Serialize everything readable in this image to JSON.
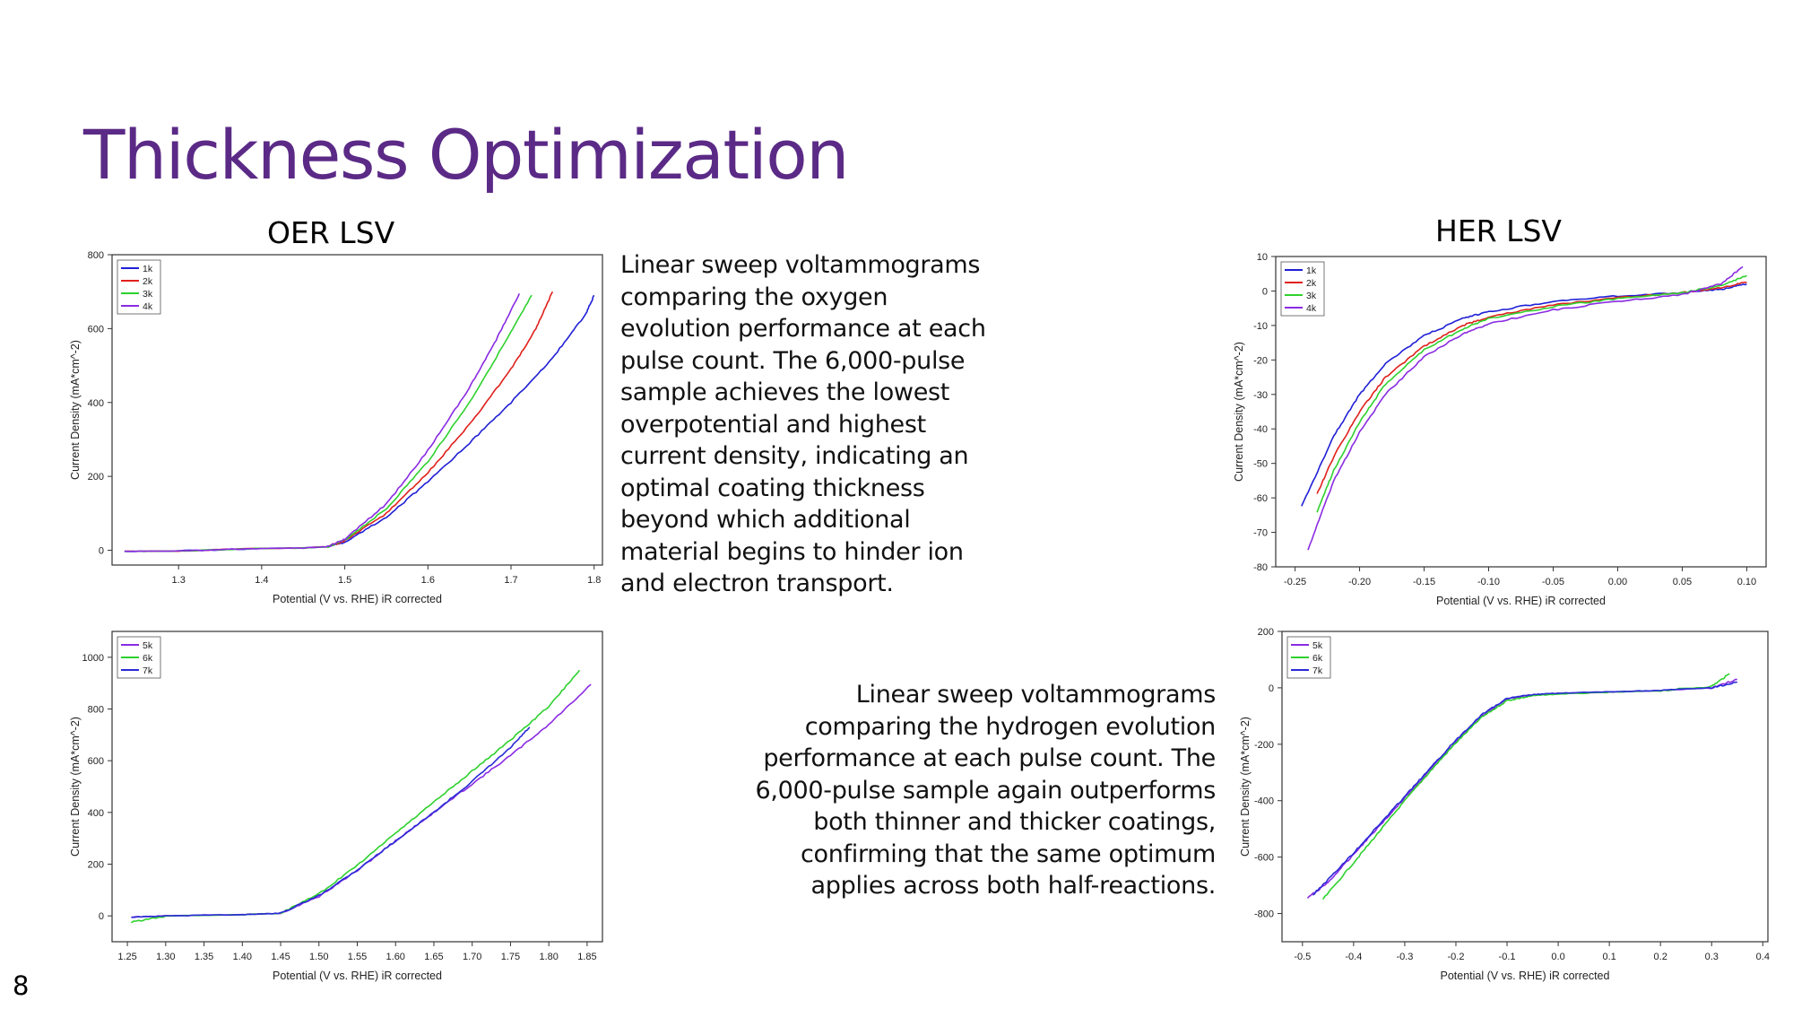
{
  "slide": {
    "title": "Thickness Optimization",
    "page_number": "8",
    "oer_heading": "OER LSV",
    "her_heading": "HER LSV",
    "oer_description": "Linear sweep voltammograms comparing the oxygen evolution performance at each pulse count. The 6,000-pulse sample achieves the lowest overpotential and highest current density, indicating an optimal coating thickness beyond which additional material begins to hinder ion and electron transport.",
    "her_description": "Linear sweep voltammograms comparing the hydrogen evolution performance at each pulse count. The 6,000-pulse sample again outperforms both thinner and thicker coatings, confirming that the same optimum applies across both half-reactions.",
    "title_color": "#5b2a86"
  },
  "chart_data": [
    {
      "id": "oer-1k-4k",
      "type": "line",
      "title": "",
      "xlabel": "Potential (V vs. RHE) iR corrected",
      "ylabel": "Current Density (mA*cm^-2)",
      "xlim": [
        1.22,
        1.81
      ],
      "ylim": [
        -40,
        800
      ],
      "xticks": [
        "1.3",
        "1.4",
        "1.5",
        "1.6",
        "1.7",
        "1.8"
      ],
      "yticks": [
        "0",
        "200",
        "400",
        "600",
        "800"
      ],
      "grid": false,
      "legend": "top-left",
      "series": [
        {
          "name": "1k",
          "color": "#1f1fd6",
          "x": [
            1.235,
            1.3,
            1.4,
            1.45,
            1.48,
            1.5,
            1.55,
            1.6,
            1.65,
            1.7,
            1.75,
            1.79,
            1.8
          ],
          "y": [
            -3,
            -2,
            5,
            6,
            10,
            22,
            90,
            185,
            290,
            400,
            520,
            640,
            690
          ]
        },
        {
          "name": "2k",
          "color": "#e0201b",
          "x": [
            1.235,
            1.3,
            1.4,
            1.45,
            1.48,
            1.5,
            1.55,
            1.6,
            1.65,
            1.7,
            1.73,
            1.75
          ],
          "y": [
            -3,
            -2,
            5,
            6,
            10,
            25,
            100,
            210,
            340,
            490,
            600,
            700
          ]
        },
        {
          "name": "3k",
          "color": "#2ed12e",
          "x": [
            1.235,
            1.3,
            1.4,
            1.45,
            1.48,
            1.5,
            1.55,
            1.6,
            1.65,
            1.7,
            1.725
          ],
          "y": [
            -3,
            -2,
            5,
            6,
            10,
            28,
            112,
            240,
            400,
            590,
            690
          ]
        },
        {
          "name": "4k",
          "color": "#8a2be2",
          "x": [
            1.235,
            1.3,
            1.4,
            1.45,
            1.48,
            1.5,
            1.55,
            1.6,
            1.65,
            1.68,
            1.71
          ],
          "y": [
            -3,
            -2,
            5,
            6,
            10,
            30,
            125,
            270,
            440,
            560,
            695
          ]
        }
      ]
    },
    {
      "id": "oer-5k-7k",
      "type": "line",
      "title": "",
      "xlabel": "Potential (V vs. RHE) iR corrected",
      "ylabel": "Current Density (mA*cm^-2)",
      "xlim": [
        1.23,
        1.87
      ],
      "ylim": [
        -100,
        1100
      ],
      "xticks": [
        "1.25",
        "1.30",
        "1.35",
        "1.40",
        "1.45",
        "1.50",
        "1.55",
        "1.60",
        "1.65",
        "1.70",
        "1.75",
        "1.80",
        "1.85"
      ],
      "yticks": [
        "0",
        "200",
        "400",
        "600",
        "800",
        "1000"
      ],
      "grid": false,
      "legend": "top-left",
      "series": [
        {
          "name": "5k",
          "color": "#8a2be2",
          "x": [
            1.255,
            1.3,
            1.4,
            1.45,
            1.5,
            1.55,
            1.6,
            1.65,
            1.7,
            1.75,
            1.8,
            1.855
          ],
          "y": [
            -5,
            0,
            5,
            10,
            75,
            175,
            290,
            400,
            510,
            620,
            740,
            895
          ]
        },
        {
          "name": "6k",
          "color": "#2ed12e",
          "x": [
            1.255,
            1.3,
            1.4,
            1.45,
            1.5,
            1.55,
            1.6,
            1.65,
            1.7,
            1.75,
            1.8,
            1.84
          ],
          "y": [
            -25,
            0,
            5,
            10,
            85,
            195,
            320,
            440,
            560,
            680,
            810,
            950
          ]
        },
        {
          "name": "7k",
          "color": "#2a2ad6",
          "x": [
            1.255,
            1.3,
            1.4,
            1.45,
            1.5,
            1.55,
            1.6,
            1.65,
            1.7,
            1.75,
            1.775
          ],
          "y": [
            -5,
            0,
            5,
            10,
            78,
            178,
            290,
            400,
            520,
            650,
            730
          ]
        }
      ]
    },
    {
      "id": "her-1k-4k",
      "type": "line",
      "title": "",
      "xlabel": "Potential (V vs. RHE) iR corrected",
      "ylabel": "Current Density (mA*cm^-2)",
      "xlim": [
        -0.265,
        0.115
      ],
      "ylim": [
        -80,
        10
      ],
      "xticks": [
        "-0.25",
        "-0.20",
        "-0.15",
        "-0.10",
        "-0.05",
        "0.00",
        "0.05",
        "0.10"
      ],
      "yticks": [
        "10",
        "0",
        "-10",
        "-20",
        "-30",
        "-40",
        "-50",
        "-60",
        "-70",
        "-80"
      ],
      "grid": false,
      "legend": "top-left",
      "series": [
        {
          "name": "1k",
          "color": "#1f1fd6",
          "x": [
            -0.245,
            -0.22,
            -0.2,
            -0.18,
            -0.15,
            -0.12,
            -0.1,
            -0.05,
            0.0,
            0.05,
            0.08,
            0.1
          ],
          "y": [
            -62.5,
            -42,
            -30,
            -21,
            -13,
            -8,
            -6,
            -3,
            -1.5,
            -0.5,
            0.5,
            2
          ]
        },
        {
          "name": "2k",
          "color": "#e0201b",
          "x": [
            -0.233,
            -0.22,
            -0.2,
            -0.18,
            -0.15,
            -0.12,
            -0.1,
            -0.05,
            0.0,
            0.05,
            0.08,
            0.1
          ],
          "y": [
            -59,
            -48,
            -35,
            -25,
            -16,
            -10,
            -7.5,
            -4,
            -2,
            -0.5,
            1,
            2.5
          ]
        },
        {
          "name": "3k",
          "color": "#2ed12e",
          "x": [
            -0.233,
            -0.22,
            -0.2,
            -0.18,
            -0.15,
            -0.12,
            -0.1,
            -0.05,
            0.0,
            0.05,
            0.08,
            0.1
          ],
          "y": [
            -64,
            -52,
            -38,
            -27,
            -17,
            -11,
            -8,
            -4.5,
            -2.2,
            -0.5,
            1.5,
            4.5
          ]
        },
        {
          "name": "4k",
          "color": "#8a2be2",
          "x": [
            -0.24,
            -0.22,
            -0.2,
            -0.18,
            -0.15,
            -0.12,
            -0.1,
            -0.05,
            0.0,
            0.05,
            0.08,
            0.097
          ],
          "y": [
            -75,
            -55,
            -41,
            -30,
            -19,
            -12.5,
            -9.5,
            -5.5,
            -3,
            -1,
            2,
            7
          ]
        }
      ]
    },
    {
      "id": "her-5k-7k",
      "type": "line",
      "title": "",
      "xlabel": "Potential (V vs. RHE) iR corrected",
      "ylabel": "Current Density (mA*cm^-2)",
      "xlim": [
        -0.54,
        0.41
      ],
      "ylim": [
        -900,
        200
      ],
      "xticks": [
        "-0.5",
        "-0.4",
        "-0.3",
        "-0.2",
        "-0.1",
        "0.0",
        "0.1",
        "0.2",
        "0.3",
        "0.4"
      ],
      "yticks": [
        "200",
        "0",
        "-200",
        "-400",
        "-600",
        "-800"
      ],
      "grid": false,
      "legend": "top-left",
      "series": [
        {
          "name": "5k",
          "color": "#8a2be2",
          "x": [
            -0.49,
            -0.45,
            -0.4,
            -0.35,
            -0.3,
            -0.25,
            -0.2,
            -0.15,
            -0.1,
            -0.05,
            0.0,
            0.1,
            0.2,
            0.3,
            0.35
          ],
          "y": [
            -745,
            -690,
            -590,
            -490,
            -390,
            -290,
            -190,
            -100,
            -40,
            -25,
            -20,
            -15,
            -10,
            0,
            30
          ]
        },
        {
          "name": "6k",
          "color": "#2ed12e",
          "x": [
            -0.46,
            -0.4,
            -0.35,
            -0.3,
            -0.25,
            -0.2,
            -0.15,
            -0.1,
            -0.05,
            0.0,
            0.1,
            0.2,
            0.3,
            0.335
          ],
          "y": [
            -750,
            -620,
            -510,
            -400,
            -295,
            -195,
            -105,
            -45,
            -28,
            -22,
            -16,
            -10,
            5,
            50
          ]
        },
        {
          "name": "7k",
          "color": "#2a2ad6",
          "x": [
            -0.48,
            -0.45,
            -0.4,
            -0.35,
            -0.3,
            -0.25,
            -0.2,
            -0.15,
            -0.1,
            -0.05,
            0.0,
            0.1,
            0.2,
            0.3,
            0.35
          ],
          "y": [
            -735,
            -680,
            -585,
            -485,
            -385,
            -285,
            -185,
            -95,
            -38,
            -24,
            -19,
            -14,
            -9,
            0,
            20
          ]
        }
      ]
    }
  ]
}
